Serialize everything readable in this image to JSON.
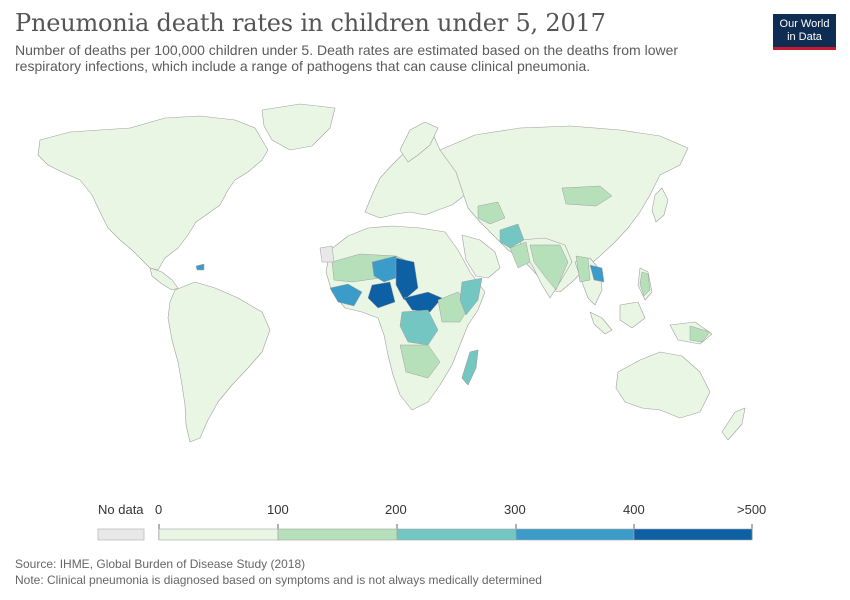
{
  "header": {
    "title": "Pneumonia death rates in children under 5, 2017",
    "subtitle": "Number of deaths per 100,000 children under 5. Death rates are estimated based on the deaths from lower respiratory infections, which include a range of pathogens that can cause clinical pneumonia."
  },
  "logo": {
    "line1": "Our World",
    "line2": "in Data"
  },
  "legend": {
    "no_data_label": "No data",
    "no_data_color": "#e8e8e8",
    "ticks": [
      "0",
      "100",
      "200",
      "300",
      "400",
      ">500"
    ],
    "bins": [
      {
        "range": "0-100",
        "color": "#eaf6e4"
      },
      {
        "range": "100-200",
        "color": "#b6e0b9"
      },
      {
        "range": "200-300",
        "color": "#74c6c2"
      },
      {
        "range": "300-400",
        "color": "#3c9cc9"
      },
      {
        "range": "400-500",
        "color": "#0e60a4"
      }
    ]
  },
  "map": {
    "land_color": "#eaf6e4",
    "border_color": "#a0a0a0"
  },
  "footer": {
    "source": "Source: IHME, Global Burden of Disease Study (2018)",
    "note": "Note: Clinical pneumonia is diagnosed based on symptoms and is not always medically determined"
  }
}
